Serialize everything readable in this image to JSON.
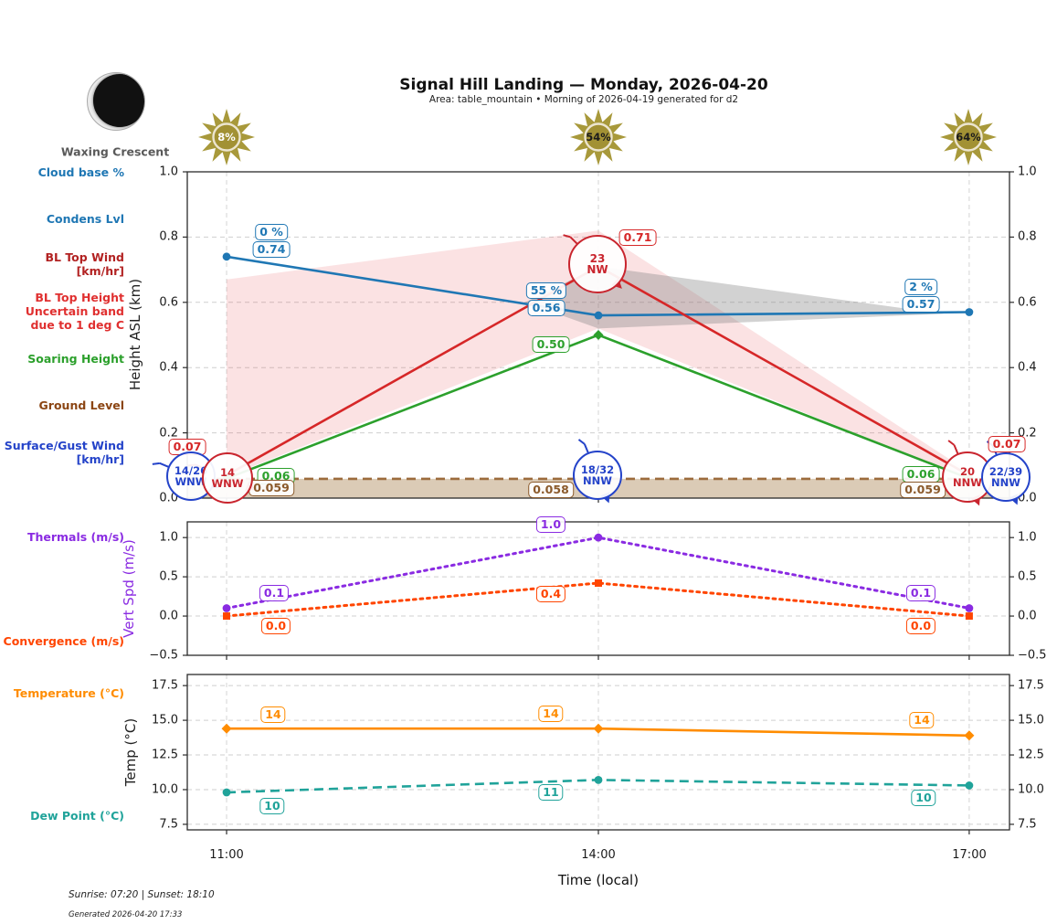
{
  "header": {
    "title": "Signal Hill Landing — Monday, 2026-04-20",
    "subtitle": "Area: table_mountain • Morning of 2026-04-19 generated for d2",
    "moon_phase": "Waxing Crescent"
  },
  "suns": [
    {
      "time": "11:00",
      "label": "8%",
      "label_color": "#ffffff"
    },
    {
      "time": "14:00",
      "label": "54%",
      "label_color": "#1b1b1b"
    },
    {
      "time": "17:00",
      "label": "64%",
      "label_color": "#1b1b1b"
    }
  ],
  "sun_colors": {
    "rays": "#a8993b",
    "disc": "#a29134",
    "ring": "#ece5cf"
  },
  "sidebar": {
    "cloud_base": "Cloud base %",
    "condens": "Condens Lvl",
    "bl_top_wind_1": "BL Top Wind",
    "bl_top_wind_2": "[km/hr]",
    "bl_top_height_1": "BL Top Height",
    "bl_top_height_2": "Uncertain band",
    "bl_top_height_3": "due to 1 deg C",
    "soaring": "Soaring Height",
    "ground": "Ground Level",
    "surface_wind_1": "Surface/Gust Wind",
    "surface_wind_2": "[km/hr]",
    "thermals": "Thermals (m/s)",
    "convergence": "Convergence (m/s)",
    "temperature": "Temperature (°C)",
    "dew_point": "Dew Point (°C)"
  },
  "axes": {
    "x_label": "Time (local)",
    "x_ticks": [
      "11:00",
      "14:00",
      "17:00"
    ]
  },
  "footer": {
    "sun_times": "Sunrise: 07:20 | Sunset: 18:10",
    "generated": "Generated 2026-04-20 17:33"
  },
  "chart_data": [
    {
      "type": "line",
      "ylabel": "Height ASL (km)",
      "ylabel_color": "#222222",
      "ylim": [
        0.0,
        1.0
      ],
      "yticks": [
        {
          "label": "1.0",
          "v": 1.0
        },
        {
          "label": "0.8",
          "v": 0.8
        },
        {
          "label": "0.6",
          "v": 0.6
        },
        {
          "label": "0.4",
          "v": 0.4
        },
        {
          "label": "0.2",
          "v": 0.2
        },
        {
          "label": "0.0",
          "v": 0.0
        }
      ],
      "x": [
        "11:00",
        "14:00",
        "17:00"
      ],
      "series": [
        {
          "name": "Condensation Level",
          "color": "#1f77b4",
          "style": "solid",
          "marker": "circle",
          "values": [
            0.74,
            0.56,
            0.57
          ]
        },
        {
          "name": "BL Top Height",
          "color": "#d62728",
          "style": "solid",
          "marker": "none",
          "values": [
            0.07,
            0.71,
            0.07
          ]
        },
        {
          "name": "Soaring Height",
          "color": "#2ca02c",
          "style": "solid",
          "marker": "diamond",
          "values": [
            0.06,
            0.5,
            0.06
          ]
        },
        {
          "name": "Ground Level",
          "color": "#9c6b3c",
          "style": "dashed",
          "marker": "none",
          "values": [
            0.059,
            0.058,
            0.059
          ],
          "full_width": true,
          "fill_to_zero": "rgba(170,130,80,0.42)"
        }
      ],
      "bands": [
        {
          "name": "BL top height uncertainty band due to 1 deg C",
          "color": "rgba(225,60,70,0.15)",
          "upper": [
            0.67,
            0.82,
            0.08
          ],
          "lower": [
            0.065,
            0.52,
            0.055
          ]
        },
        {
          "name": "cloud layer",
          "color": "rgba(125,125,125,0.35)",
          "polygon_fx": [
            0.411,
            0.5,
            0.92,
            0.5
          ],
          "polygon_v": [
            0.6,
            0.71,
            0.565,
            0.52
          ]
        }
      ],
      "annotations": [
        {
          "text": "0 %",
          "color": "#1f77b4"
        },
        {
          "text": "0.74",
          "color": "#1f77b4"
        },
        {
          "text": "55 %",
          "color": "#1f77b4"
        },
        {
          "text": "0.56",
          "color": "#1f77b4"
        },
        {
          "text": "2 %",
          "color": "#1f77b4"
        },
        {
          "text": "0.57",
          "color": "#1f77b4"
        },
        {
          "text": "0.07",
          "color": "#d62728"
        },
        {
          "text": "0.71",
          "color": "#d62728"
        },
        {
          "text": "0.07",
          "color": "#d62728"
        },
        {
          "text": "0.06",
          "color": "#2ca02c"
        },
        {
          "text": "0.50",
          "color": "#2ca02c"
        },
        {
          "text": "0.06",
          "color": "#2ca02c"
        },
        {
          "text": "0.059",
          "color": "#8b5a2b"
        },
        {
          "text": "0.058",
          "color": "#8b5a2b"
        },
        {
          "text": "0.059",
          "color": "#8b5a2b"
        }
      ],
      "wind_circles": [
        {
          "label_top": "14/26",
          "label_bottom": "WNW",
          "color": "#2443c9",
          "kind": "surface-gust-wind"
        },
        {
          "label_top": "14",
          "label_bottom": "WNW",
          "color": "#c9252e",
          "kind": "bl-top-wind"
        },
        {
          "label_top": "18/32",
          "label_bottom": "NNW",
          "color": "#2443c9",
          "kind": "surface-gust-wind"
        },
        {
          "label_top": "23",
          "label_bottom": "NW",
          "color": "#c9252e",
          "kind": "bl-top-wind"
        },
        {
          "label_top": "20",
          "label_bottom": "NNW",
          "color": "#c9252e",
          "kind": "bl-top-wind"
        },
        {
          "label_top": "22/39",
          "label_bottom": "NNW",
          "color": "#2443c9",
          "kind": "surface-gust-wind"
        }
      ]
    },
    {
      "type": "line",
      "ylabel": "Vert Spd (m/s)",
      "ylabel_color": "#8a2be2",
      "ylim": [
        -0.5,
        1.2
      ],
      "yticks": [
        {
          "label": "1.0",
          "v": 1.0
        },
        {
          "label": "0.5",
          "v": 0.5
        },
        {
          "label": "0.0",
          "v": 0.0
        },
        {
          "label": "−0.5",
          "v": -0.5
        }
      ],
      "x": [
        "11:00",
        "14:00",
        "17:00"
      ],
      "series": [
        {
          "name": "Thermals",
          "color": "#8a2be2",
          "style": "dotted",
          "marker": "circle",
          "values": [
            0.1,
            1.0,
            0.1
          ]
        },
        {
          "name": "Convergence",
          "color": "#ff4500",
          "style": "dotted",
          "marker": "square",
          "values": [
            0.0,
            0.42,
            0.0
          ]
        }
      ],
      "bands": [],
      "annotations": [
        {
          "text": "0.1",
          "color": "#8a2be2"
        },
        {
          "text": "1.0",
          "color": "#8a2be2"
        },
        {
          "text": "0.1",
          "color": "#8a2be2"
        },
        {
          "text": "0.0",
          "color": "#ff4500"
        },
        {
          "text": "0.4",
          "color": "#ff4500"
        },
        {
          "text": "0.0",
          "color": "#ff4500"
        }
      ],
      "wind_circles": []
    },
    {
      "type": "line",
      "ylabel": "Temp (°C)",
      "ylabel_color": "#222222",
      "ylim": [
        7.1,
        18.3
      ],
      "yticks": [
        {
          "label": "17.5",
          "v": 17.5
        },
        {
          "label": "15.0",
          "v": 15.0
        },
        {
          "label": "12.5",
          "v": 12.5
        },
        {
          "label": "10.0",
          "v": 10.0
        },
        {
          "label": "7.5",
          "v": 7.5
        }
      ],
      "x": [
        "11:00",
        "14:00",
        "17:00"
      ],
      "series": [
        {
          "name": "Temperature",
          "color": "#ff8c00",
          "style": "solid",
          "marker": "diamond",
          "values": [
            14.4,
            14.4,
            13.9
          ]
        },
        {
          "name": "Dew Point",
          "color": "#20a39a",
          "style": "dashed",
          "marker": "circle",
          "values": [
            9.8,
            10.7,
            10.3
          ]
        }
      ],
      "bands": [],
      "annotations": [
        {
          "text": "14",
          "color": "#ff8c00"
        },
        {
          "text": "14",
          "color": "#ff8c00"
        },
        {
          "text": "14",
          "color": "#ff8c00"
        },
        {
          "text": "10",
          "color": "#20a39a"
        },
        {
          "text": "11",
          "color": "#20a39a"
        },
        {
          "text": "10",
          "color": "#20a39a"
        }
      ],
      "wind_circles": []
    }
  ]
}
